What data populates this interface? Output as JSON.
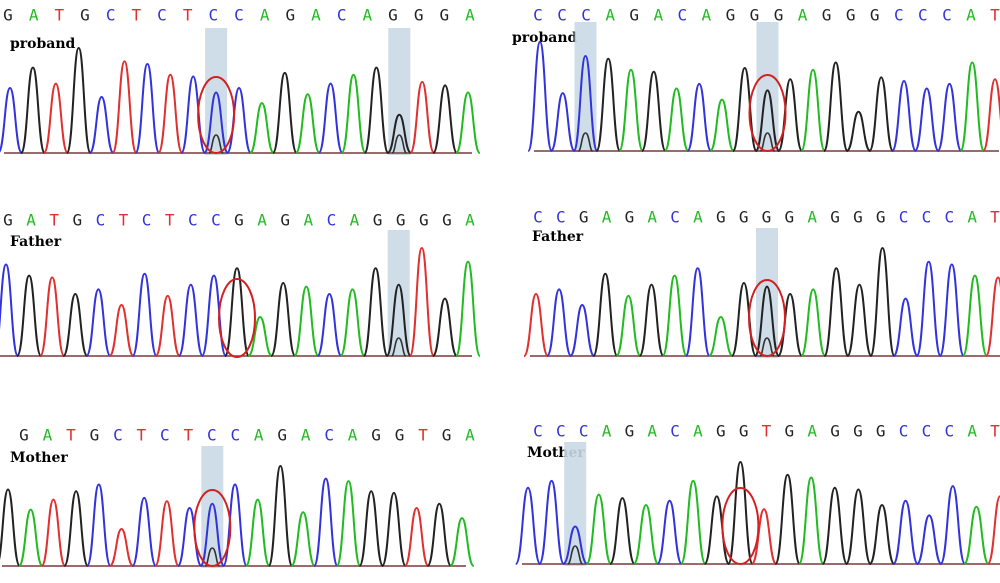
{
  "colors": {
    "A": "#22bb22",
    "C": "#3333dd",
    "G": "#222222",
    "T": "#e03030",
    "highlight": "#c9d9e6",
    "circle": "#d42020"
  },
  "panels": [
    {
      "label": "proband",
      "bases": [
        "G",
        "A",
        "T",
        "G",
        "C",
        "T",
        "C",
        "T",
        "C",
        "C",
        "A",
        "G",
        "A",
        "C",
        "A",
        "G",
        "G",
        "G",
        "A"
      ],
      "peaks": [
        "C",
        "G",
        "T",
        "G",
        "C",
        "T",
        "C",
        "T",
        "C",
        "C",
        "C",
        "A",
        "G",
        "A",
        "C",
        "A",
        "G",
        "G",
        "T",
        "G",
        "A"
      ],
      "highlights": [
        9,
        17
      ],
      "circle_peak": 9
    },
    {
      "label": "proband",
      "bases": [
        "C",
        "C",
        "C",
        "A",
        "G",
        "A",
        "C",
        "A",
        "G",
        "G",
        "G",
        "A",
        "G",
        "G",
        "G",
        "C",
        "C",
        "C",
        "A",
        "T"
      ],
      "peaks": [
        "C",
        "C",
        "C",
        "G",
        "A",
        "G",
        "A",
        "C",
        "A",
        "G",
        "G",
        "G",
        "A",
        "G",
        "G",
        "G",
        "C",
        "C",
        "C",
        "A",
        "T"
      ],
      "highlights": [
        2,
        10
      ],
      "circle_peak": 10
    },
    {
      "label": "Father",
      "bases": [
        "G",
        "A",
        "T",
        "G",
        "C",
        "T",
        "C",
        "T",
        "C",
        "C",
        "G",
        "A",
        "G",
        "A",
        "C",
        "A",
        "G",
        "G",
        "G",
        "G",
        "A"
      ],
      "peaks": [
        "C",
        "G",
        "T",
        "G",
        "C",
        "T",
        "C",
        "T",
        "C",
        "C",
        "G",
        "A",
        "G",
        "A",
        "C",
        "A",
        "G",
        "G",
        "T",
        "G",
        "A"
      ],
      "highlights": [
        17
      ],
      "circle_peak": 10
    },
    {
      "label": "Father",
      "bases": [
        "C",
        "C",
        "G",
        "A",
        "G",
        "A",
        "C",
        "A",
        "G",
        "G",
        "G",
        "G",
        "A",
        "G",
        "G",
        "G",
        "C",
        "C",
        "C",
        "A",
        "T"
      ],
      "peaks": [
        "T",
        "C",
        "C",
        "G",
        "A",
        "G",
        "A",
        "C",
        "A",
        "G",
        "G",
        "G",
        "A",
        "G",
        "G",
        "G",
        "C",
        "C",
        "C",
        "A",
        "T"
      ],
      "highlights": [
        10
      ],
      "circle_peak": 10
    },
    {
      "label": "Mother",
      "bases": [
        "G",
        "A",
        "T",
        "G",
        "C",
        "T",
        "C",
        "T",
        "C",
        "C",
        "A",
        "G",
        "A",
        "C",
        "A",
        "G",
        "G",
        "T",
        "G",
        "A"
      ],
      "peaks": [
        "G",
        "A",
        "T",
        "G",
        "C",
        "T",
        "C",
        "T",
        "C",
        "C",
        "C",
        "A",
        "G",
        "A",
        "C",
        "A",
        "G",
        "G",
        "T",
        "G",
        "A"
      ],
      "highlights": [
        9
      ],
      "circle_peak": 9
    },
    {
      "label": "Mother",
      "bases": [
        "C",
        "C",
        "C",
        "A",
        "G",
        "A",
        "C",
        "A",
        "G",
        "G",
        "T",
        "G",
        "A",
        "G",
        "G",
        "G",
        "C",
        "C",
        "C",
        "A",
        "T"
      ],
      "peaks": [
        "C",
        "C",
        "C",
        "A",
        "G",
        "A",
        "C",
        "A",
        "G",
        "G",
        "T",
        "G",
        "A",
        "G",
        "G",
        "G",
        "C",
        "C",
        "C",
        "A",
        "T"
      ],
      "highlights": [
        2
      ],
      "circle_peak": 9
    }
  ]
}
